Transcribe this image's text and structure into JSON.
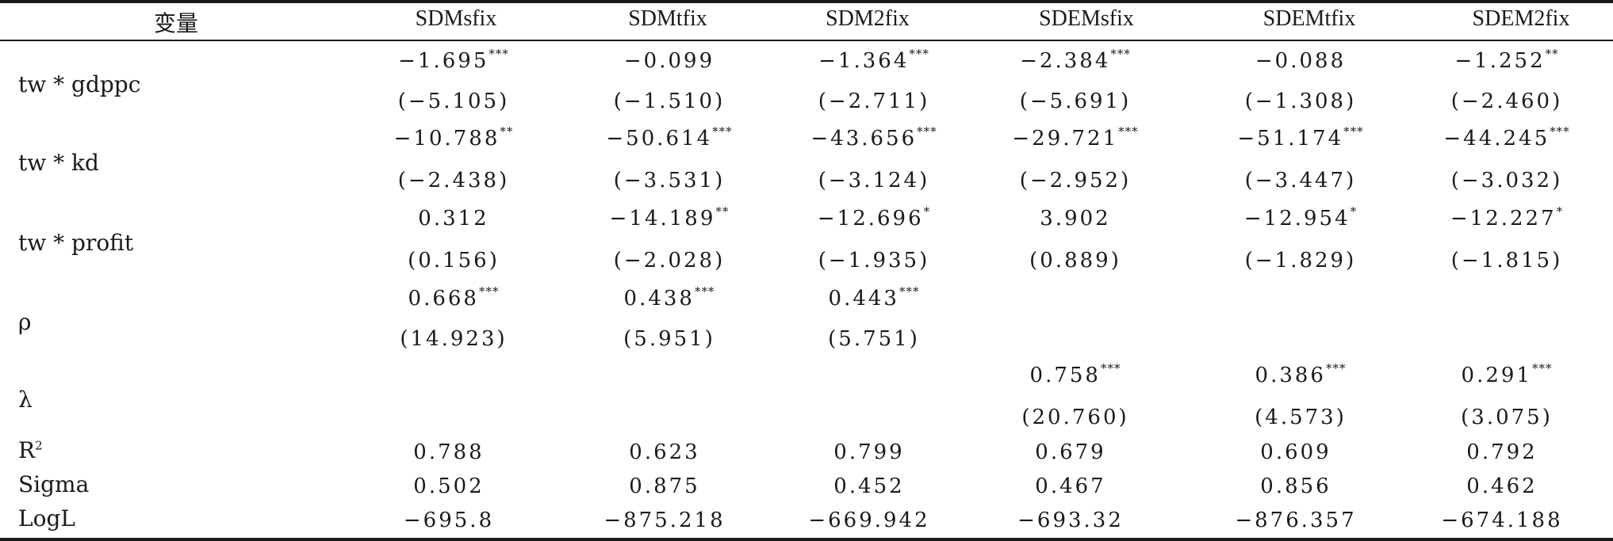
{
  "table": {
    "columns": [
      "变量",
      "SDMsfix",
      "SDMtfix",
      "SDM2fix",
      "SDEMsfix",
      "SDEMtfix",
      "SDEM2fix"
    ],
    "rows": [
      {
        "label": "tw * gdppc",
        "coef": [
          "−1.695",
          "−0.099",
          "−1.364",
          "−2.384",
          "−0.088",
          "−1.252"
        ],
        "stars": [
          "***",
          "",
          "***",
          "***",
          "",
          "**"
        ],
        "t": [
          "(−5.105)",
          "(−1.510)",
          "(−2.711)",
          "(−5.691)",
          "(−1.308)",
          "(−2.460)"
        ]
      },
      {
        "label": "tw * kd",
        "coef": [
          "−10.788",
          "−50.614",
          "−43.656",
          "−29.721",
          "−51.174",
          "−44.245"
        ],
        "stars": [
          "**",
          "***",
          "***",
          "***",
          "***",
          "***"
        ],
        "t": [
          "(−2.438)",
          "(−3.531)",
          "(−3.124)",
          "(−2.952)",
          "(−3.447)",
          "(−3.032)"
        ]
      },
      {
        "label": "tw * profit",
        "coef": [
          "0.312",
          "−14.189",
          "−12.696",
          "3.902",
          "−12.954",
          "−12.227"
        ],
        "stars": [
          "",
          "**",
          "*",
          "",
          "*",
          "*"
        ],
        "t": [
          "(0.156)",
          "(−2.028)",
          "(−1.935)",
          "(0.889)",
          "(−1.829)",
          "(−1.815)"
        ]
      },
      {
        "label": "ρ",
        "coef": [
          "0.668",
          "0.438",
          "0.443",
          "",
          "",
          ""
        ],
        "stars": [
          "***",
          "***",
          "***",
          "",
          "",
          ""
        ],
        "t": [
          "(14.923)",
          "(5.951)",
          "(5.751)",
          "",
          "",
          ""
        ]
      },
      {
        "label": "λ",
        "coef": [
          "",
          "",
          "",
          "0.758",
          "0.386",
          "0.291"
        ],
        "stars": [
          "",
          "",
          "",
          "***",
          "***",
          "***"
        ],
        "t": [
          "",
          "",
          "",
          "(20.760)",
          "(4.573)",
          "(3.075)"
        ]
      }
    ],
    "stats": [
      {
        "label": "R",
        "sup": "2",
        "values": [
          "0.788",
          "0.623",
          "0.799",
          "0.679",
          "0.609",
          "0.792"
        ]
      },
      {
        "label": "Sigma",
        "sup": "",
        "values": [
          "0.502",
          "0.875",
          "0.452",
          "0.467",
          "0.856",
          "0.462"
        ]
      },
      {
        "label": "LogL",
        "sup": "",
        "values": [
          "−695.8",
          "−875.218",
          "−669.942",
          "−693.32",
          "−876.357",
          "−674.188"
        ]
      }
    ]
  }
}
